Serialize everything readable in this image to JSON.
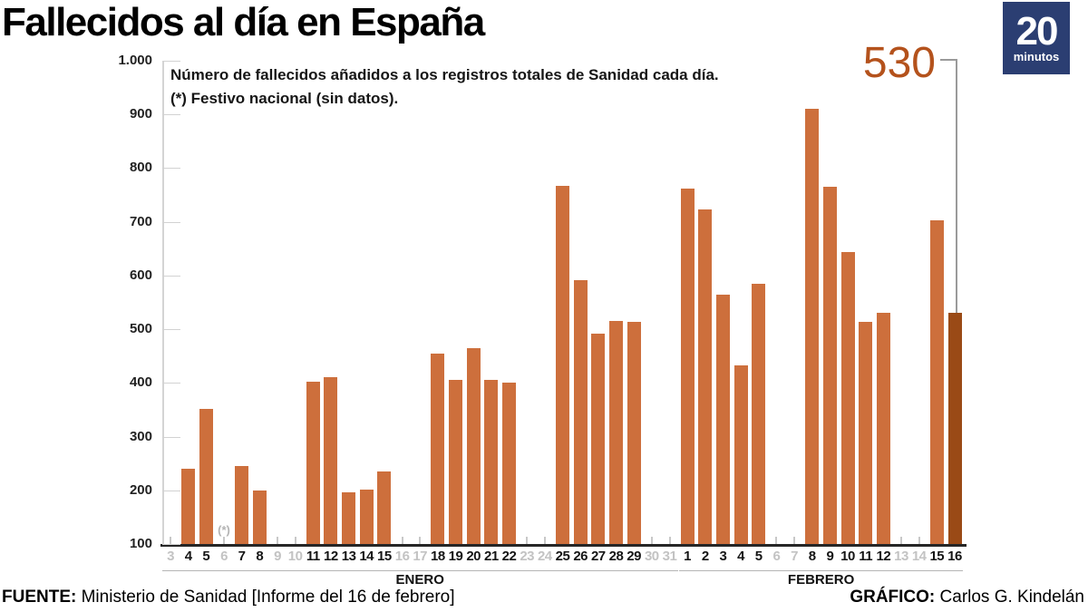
{
  "title": "Fallecidos al día en España",
  "logo": {
    "number": "20",
    "word": "minutos",
    "bg_color": "#2b3e72"
  },
  "annotation": {
    "value_label": "530"
  },
  "notes": {
    "line1": "Número de fallecidos añadidos a los registros totales de Sanidad cada día.",
    "line2": "(*) Festivo nacional (sin datos)."
  },
  "footer": {
    "source_label": "FUENTE:",
    "source_text": "Ministerio de Sanidad [Informe del 16 de febrero]",
    "credit_label": "GRÁFICO:",
    "credit_text": "Carlos G. Kindelán"
  },
  "chart_data": {
    "type": "bar",
    "title": "Fallecidos al día en España",
    "subtitle": "Número de fallecidos añadidos a los registros totales de Sanidad cada día. (*) Festivo nacional (sin datos).",
    "xlabel": "",
    "ylabel": "",
    "ylim": [
      100,
      1000
    ],
    "grid": false,
    "y_ticks": [
      {
        "value": 100,
        "label": "100"
      },
      {
        "value": 200,
        "label": "200"
      },
      {
        "value": 300,
        "label": "300"
      },
      {
        "value": 400,
        "label": "400"
      },
      {
        "value": 500,
        "label": "500"
      },
      {
        "value": 600,
        "label": "600"
      },
      {
        "value": 700,
        "label": "700"
      },
      {
        "value": 800,
        "label": "800"
      },
      {
        "value": 900,
        "label": "900"
      },
      {
        "value": 1000,
        "label": "1.000"
      }
    ],
    "bar_color": "#cd6f3c",
    "highlight_bar_color": "#9a4a16",
    "data_label_color": "#151515",
    "no_data_label_color": "#c3c3c3",
    "months": [
      {
        "label": "ENERO",
        "days": [
          {
            "day": "3",
            "value": null
          },
          {
            "day": "4",
            "value": 241
          },
          {
            "day": "5",
            "value": 352
          },
          {
            "day": "6",
            "value": null
          },
          {
            "day": "7",
            "value": 246
          },
          {
            "day": "8",
            "value": 199
          },
          {
            "day": "9",
            "value": null
          },
          {
            "day": "10",
            "value": null
          },
          {
            "day": "11",
            "value": 403
          },
          {
            "day": "12",
            "value": 410
          },
          {
            "day": "13",
            "value": 196
          },
          {
            "day": "14",
            "value": 202
          },
          {
            "day": "15",
            "value": 235
          },
          {
            "day": "16",
            "value": null
          },
          {
            "day": "17",
            "value": null
          },
          {
            "day": "18",
            "value": 455
          },
          {
            "day": "19",
            "value": 406
          },
          {
            "day": "20",
            "value": 465
          },
          {
            "day": "21",
            "value": 405
          },
          {
            "day": "22",
            "value": 400
          },
          {
            "day": "23",
            "value": null
          },
          {
            "day": "24",
            "value": null
          },
          {
            "day": "25",
            "value": 767
          },
          {
            "day": "26",
            "value": 591
          },
          {
            "day": "27",
            "value": 492
          },
          {
            "day": "28",
            "value": 515
          },
          {
            "day": "29",
            "value": 513
          },
          {
            "day": "30",
            "value": null
          },
          {
            "day": "31",
            "value": null
          }
        ]
      },
      {
        "label": "FEBRERO",
        "days": [
          {
            "day": "1",
            "value": 762
          },
          {
            "day": "2",
            "value": 724
          },
          {
            "day": "3",
            "value": 565
          },
          {
            "day": "4",
            "value": 432
          },
          {
            "day": "5",
            "value": 584
          },
          {
            "day": "6",
            "value": null
          },
          {
            "day": "7",
            "value": null
          },
          {
            "day": "8",
            "value": 910
          },
          {
            "day": "9",
            "value": 766
          },
          {
            "day": "10",
            "value": 644
          },
          {
            "day": "11",
            "value": 513
          },
          {
            "day": "12",
            "value": 531
          },
          {
            "day": "13",
            "value": null
          },
          {
            "day": "14",
            "value": null
          },
          {
            "day": "15",
            "value": 703
          },
          {
            "day": "16",
            "value": 530
          }
        ]
      }
    ],
    "festivo": {
      "month": "ENERO",
      "day": "6",
      "symbol": "(*)"
    },
    "highlight": {
      "month": "FEBRERO",
      "day": "16",
      "value": 530,
      "label": "530"
    }
  }
}
